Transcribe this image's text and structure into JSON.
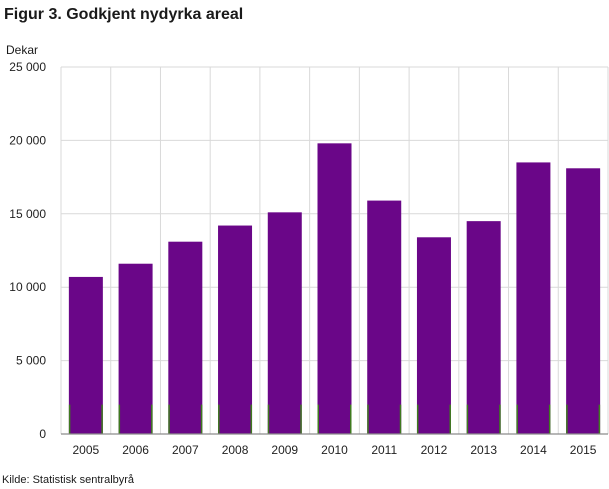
{
  "chart_data": {
    "type": "bar",
    "title": "Figur 3. Godkjent nydyrka areal",
    "ylabel": "Dekar",
    "xlabel": "",
    "source": "Kilde: Statistisk sentralbyrå",
    "categories": [
      "2005",
      "2006",
      "2007",
      "2008",
      "2009",
      "2010",
      "2011",
      "2012",
      "2013",
      "2014",
      "2015"
    ],
    "values": [
      10700,
      11600,
      13100,
      14200,
      15100,
      19800,
      15900,
      13400,
      14500,
      18500,
      18100
    ],
    "ylim": [
      0,
      25000
    ],
    "yticks": [
      0,
      5000,
      10000,
      15000,
      20000,
      25000
    ],
    "ytick_labels": [
      "0",
      "5 000",
      "10 000",
      "15 000",
      "20 000",
      "25 000"
    ],
    "grid": true,
    "colors": {
      "bar": "#6a0688",
      "grid": "#d9d9d9",
      "axis": "#8c8c8c",
      "marker": "#3f7a1f"
    }
  }
}
